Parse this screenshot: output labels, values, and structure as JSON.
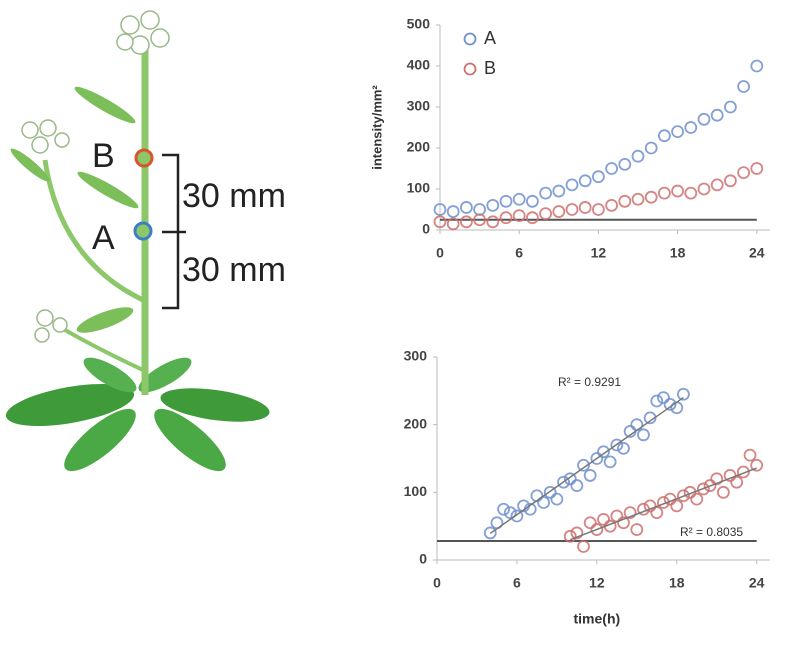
{
  "diagram": {
    "point_labels": [
      "B",
      "A"
    ],
    "distances": [
      "30 mm",
      "30 mm"
    ]
  },
  "chart_data": [
    {
      "type": "scatter",
      "y_label": "intensity/mm²",
      "xlim": [
        0,
        25
      ],
      "ylim": [
        0,
        500
      ],
      "xticks": [
        0,
        6,
        12,
        18,
        24
      ],
      "yticks": [
        0,
        100,
        200,
        300,
        400,
        500
      ],
      "legend": "upper left",
      "baseline": 25,
      "series": [
        {
          "name": "A",
          "color": "#6f8fcf",
          "x": [
            0,
            1,
            2,
            3,
            4,
            5,
            6,
            7,
            8,
            9,
            10,
            11,
            12,
            13,
            14,
            15,
            16,
            17,
            18,
            19,
            20,
            21,
            22,
            23,
            24
          ],
          "values": [
            50,
            45,
            55,
            50,
            60,
            70,
            75,
            70,
            90,
            95,
            110,
            120,
            130,
            150,
            160,
            180,
            200,
            230,
            240,
            250,
            270,
            280,
            300,
            350,
            400
          ]
        },
        {
          "name": "B",
          "color": "#cf6f6f",
          "x": [
            0,
            1,
            2,
            3,
            4,
            5,
            6,
            7,
            8,
            9,
            10,
            11,
            12,
            13,
            14,
            15,
            16,
            17,
            18,
            19,
            20,
            21,
            22,
            23,
            24
          ],
          "values": [
            20,
            15,
            20,
            25,
            20,
            30,
            35,
            30,
            40,
            45,
            50,
            55,
            50,
            60,
            70,
            75,
            80,
            90,
            95,
            90,
            100,
            110,
            120,
            140,
            150
          ]
        }
      ]
    },
    {
      "type": "scatter",
      "x_label": "time(h)",
      "xlim": [
        0,
        25
      ],
      "ylim": [
        0,
        300
      ],
      "xticks": [
        0,
        6,
        12,
        18,
        24
      ],
      "yticks": [
        0,
        100,
        200,
        300
      ],
      "baseline": 28,
      "trendline": true,
      "annotations": [
        "R² = 0.9291",
        "R² = 0.8035"
      ],
      "series": [
        {
          "color": "#6f8fcf",
          "x": [
            4,
            4.5,
            5,
            5.5,
            6,
            6.5,
            7,
            7.5,
            8,
            8.5,
            9,
            9.5,
            10,
            10.5,
            11,
            11.5,
            12,
            12.5,
            13,
            13.5,
            14,
            14.5,
            15,
            15.5,
            16,
            16.5,
            17,
            17.5,
            18,
            18.5
          ],
          "values": [
            40,
            55,
            75,
            70,
            65,
            80,
            75,
            95,
            85,
            100,
            90,
            115,
            120,
            110,
            140,
            125,
            150,
            160,
            145,
            170,
            165,
            190,
            200,
            185,
            210,
            235,
            240,
            230,
            225,
            245
          ]
        },
        {
          "color": "#cf6f6f",
          "x": [
            10,
            10.5,
            11,
            11.5,
            12,
            12.5,
            13,
            13.5,
            14,
            14.5,
            15,
            15.5,
            16,
            16.5,
            17,
            17.5,
            18,
            18.5,
            19,
            19.5,
            20,
            20.5,
            21,
            21.5,
            22,
            22.5,
            23,
            23.5,
            24
          ],
          "values": [
            35,
            40,
            20,
            55,
            45,
            60,
            50,
            65,
            55,
            70,
            45,
            75,
            80,
            70,
            85,
            90,
            80,
            95,
            100,
            90,
            105,
            110,
            120,
            100,
            125,
            115,
            130,
            155,
            140
          ]
        }
      ]
    }
  ]
}
